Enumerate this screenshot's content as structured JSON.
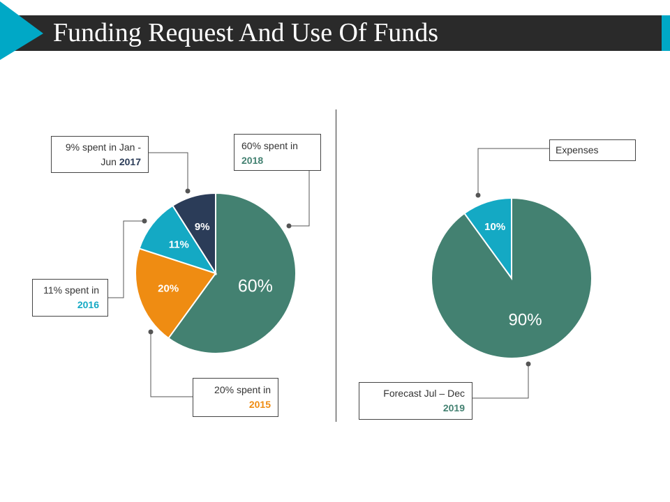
{
  "title": "Funding Request And Use Of Funds",
  "colors": {
    "accent": "#00a8c6",
    "teal": "#438171",
    "orange": "#ef8c12",
    "cyan": "#14a9c4",
    "navy": "#2b3c58",
    "bar": "#2a2a2a"
  },
  "callouts": {
    "c2017": {
      "text": "9% spent in Jan - Jun",
      "year": "2017"
    },
    "c2018": {
      "text": "60% spent in",
      "year": "2018"
    },
    "c2016": {
      "text": "11% spent in",
      "year": "2016"
    },
    "c2015": {
      "text": "20% spent in",
      "year": "2015"
    },
    "expenses": {
      "text": "Expenses"
    },
    "c2019": {
      "text": "Forecast Jul – Dec",
      "year": "2019"
    }
  },
  "chart_data": [
    {
      "type": "pie",
      "slices": [
        {
          "label": "60%",
          "value": 60,
          "color": "#438171"
        },
        {
          "label": "20%",
          "value": 20,
          "color": "#ef8c12"
        },
        {
          "label": "11%",
          "value": 11,
          "color": "#14a9c4"
        },
        {
          "label": "9%",
          "value": 9,
          "color": "#2b3c58"
        }
      ]
    },
    {
      "type": "pie",
      "slices": [
        {
          "label": "90%",
          "value": 90,
          "color": "#438171"
        },
        {
          "label": "10%",
          "value": 10,
          "color": "#14a9c4"
        }
      ]
    }
  ]
}
